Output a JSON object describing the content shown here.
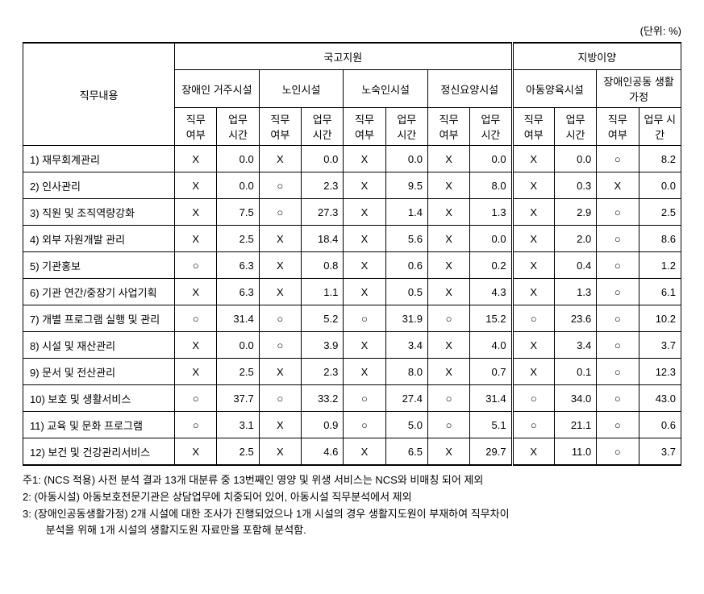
{
  "unit_label": "(단위: %)",
  "header": {
    "col_rowhead": "직무내용",
    "group1": "국고지원",
    "group2": "지방이양",
    "facilities": [
      "장애인\n거주시설",
      "노인시설",
      "노숙인시설",
      "정신요양시설",
      "아동양육시설",
      "장애인공동\n생활가정"
    ],
    "sub1": "직무\n여부",
    "sub2": "업무\n시간"
  },
  "rows": [
    {
      "label": "1) 재무회계관리",
      "cells": [
        "X",
        "0.0",
        "X",
        "0.0",
        "X",
        "0.0",
        "X",
        "0.0",
        "X",
        "0.0",
        "○",
        "8.2"
      ]
    },
    {
      "label": "2) 인사관리",
      "cells": [
        "X",
        "0.0",
        "○",
        "2.3",
        "X",
        "9.5",
        "X",
        "8.0",
        "X",
        "0.3",
        "X",
        "0.0"
      ]
    },
    {
      "label": "3) 직원 및 조직역량강화",
      "cells": [
        "X",
        "7.5",
        "○",
        "27.3",
        "X",
        "1.4",
        "X",
        "1.3",
        "X",
        "2.9",
        "○",
        "2.5"
      ]
    },
    {
      "label": "4) 외부 자원개발 관리",
      "cells": [
        "X",
        "2.5",
        "X",
        "18.4",
        "X",
        "5.6",
        "X",
        "0.0",
        "X",
        "2.0",
        "○",
        "8.6"
      ]
    },
    {
      "label": "5) 기관홍보",
      "cells": [
        "○",
        "6.3",
        "X",
        "0.8",
        "X",
        "0.6",
        "X",
        "0.2",
        "X",
        "0.4",
        "○",
        "1.2"
      ]
    },
    {
      "label": "6) 기관 연간/중장기 사업기획",
      "cells": [
        "X",
        "6.3",
        "X",
        "1.1",
        "X",
        "0.5",
        "X",
        "4.3",
        "X",
        "1.3",
        "○",
        "6.1"
      ]
    },
    {
      "label": "7) 개별 프로그램 실행 및 관리",
      "cells": [
        "○",
        "31.4",
        "○",
        "5.2",
        "○",
        "31.9",
        "○",
        "15.2",
        "○",
        "23.6",
        "○",
        "10.2"
      ]
    },
    {
      "label": "8) 시설 및 재산관리",
      "cells": [
        "X",
        "0.0",
        "○",
        "3.9",
        "X",
        "3.4",
        "X",
        "4.0",
        "X",
        "3.4",
        "○",
        "3.7"
      ]
    },
    {
      "label": "9) 문서 및 전산관리",
      "cells": [
        "X",
        "2.5",
        "X",
        "2.3",
        "X",
        "8.0",
        "X",
        "0.7",
        "X",
        "0.1",
        "○",
        "12.3"
      ]
    },
    {
      "label": "10) 보호 및 생활서비스",
      "cells": [
        "○",
        "37.7",
        "○",
        "33.2",
        "○",
        "27.4",
        "○",
        "31.4",
        "○",
        "34.0",
        "○",
        "43.0"
      ]
    },
    {
      "label": "11) 교육 및 문화 프로그램",
      "cells": [
        "○",
        "3.1",
        "X",
        "0.9",
        "○",
        "5.0",
        "○",
        "5.1",
        "○",
        "21.1",
        "○",
        "0.6"
      ]
    },
    {
      "label": "12) 보건 및 건강관리서비스",
      "cells": [
        "X",
        "2.5",
        "X",
        "4.6",
        "X",
        "6.5",
        "X",
        "29.7",
        "X",
        "11.0",
        "○",
        "3.7"
      ]
    }
  ],
  "notes": [
    "주1: (NCS 적용) 사전 분석 결과 13개 대분류 중 13번째인 영양 및 위생 서비스는 NCS와 비매칭 되어 제외",
    "   2: (아동시설) 아동보호전문기관은 상담업무에 치중되어 있어, 아동시설 직무분석에서 제외",
    "   3: (장애인공동생활가정) 2개 시설에 대한 조사가 진행되었으나 1개 시설의 경우 생활지도원이 부재하여 직무차이",
    "분석을 위해 1개 시설의 생활지도원 자료만을 포함해 분석함."
  ]
}
